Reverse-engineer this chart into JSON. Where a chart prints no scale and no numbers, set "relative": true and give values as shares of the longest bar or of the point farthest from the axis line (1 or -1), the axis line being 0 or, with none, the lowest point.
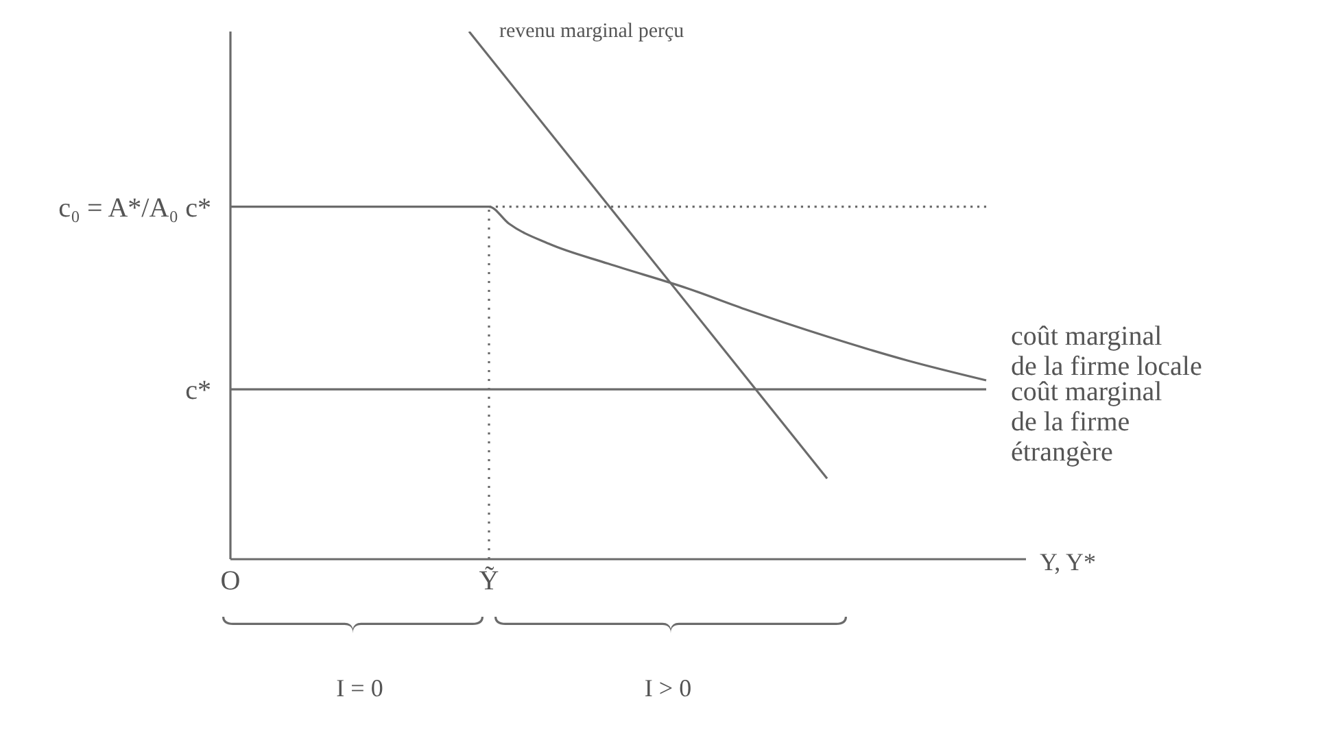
{
  "chart_data": {
    "type": "line",
    "relative": true,
    "xlabel": "Y, Y*",
    "grid": false,
    "legend": false,
    "marker": "none",
    "categories": [
      "O",
      null,
      null,
      null,
      null,
      null,
      null,
      null,
      null,
      null,
      null,
      null,
      null,
      "Ỹ",
      null,
      null,
      null,
      null,
      null,
      null,
      null,
      null,
      null,
      null,
      null,
      null,
      null,
      null,
      null,
      null,
      null,
      null,
      null,
      null,
      null,
      null,
      null,
      null,
      null,
      null,
      null
    ],
    "series": [
      {
        "name": "revenu marginal perçu",
        "color": "#6b6b6b",
        "line_style": "solid",
        "values": [
          null,
          null,
          null,
          null,
          null,
          null,
          null,
          null,
          null,
          null,
          null,
          null,
          1,
          null,
          null,
          null,
          null,
          null,
          null,
          null,
          null,
          null,
          null,
          null,
          null,
          null,
          null,
          null,
          null,
          null,
          0.153,
          null,
          null,
          null,
          null,
          null,
          null,
          null,
          null,
          null,
          null
        ]
      },
      {
        "name": "coût marginal de la firme locale",
        "color": "#6b6b6b",
        "line_style": "solid",
        "values": [
          0.668,
          null,
          null,
          null,
          null,
          null,
          null,
          null,
          null,
          null,
          null,
          null,
          null,
          0.668,
          0.636,
          null,
          0.598,
          null,
          null,
          0.56,
          null,
          null,
          null,
          0.513,
          null,
          null,
          0.472,
          null,
          null,
          null,
          0.422,
          null,
          null,
          null,
          0.377,
          null,
          null,
          null,
          0.339,
          null,
          null
        ]
      },
      {
        "name": "coût marginal de la firme étrangère",
        "color": "#6b6b6b",
        "line_style": "solid",
        "values": [
          0.322,
          null,
          null,
          null,
          null,
          null,
          null,
          null,
          null,
          null,
          null,
          null,
          null,
          null,
          null,
          null,
          null,
          null,
          null,
          null,
          null,
          null,
          null,
          null,
          null,
          null,
          null,
          null,
          null,
          null,
          null,
          null,
          null,
          null,
          null,
          null,
          null,
          null,
          0.322,
          null,
          null
        ]
      },
      {
        "color": "#6b6b6b",
        "line_style": "dotted",
        "values": [
          null,
          null,
          null,
          null,
          null,
          null,
          null,
          null,
          null,
          null,
          null,
          null,
          null,
          0.668,
          null,
          null,
          null,
          null,
          null,
          null,
          null,
          null,
          null,
          null,
          null,
          null,
          null,
          null,
          null,
          null,
          null,
          null,
          null,
          null,
          null,
          null,
          null,
          null,
          0.668,
          null,
          null
        ]
      }
    ],
    "ref_lines": [
      {
        "axis": "x",
        "value": "Ỹ",
        "line_style": "dotted",
        "color": "#6b6b6b"
      }
    ],
    "annotations": [
      "c₀ = A*/A₀ c*",
      "c*",
      "I = 0",
      "I > 0"
    ]
  }
}
